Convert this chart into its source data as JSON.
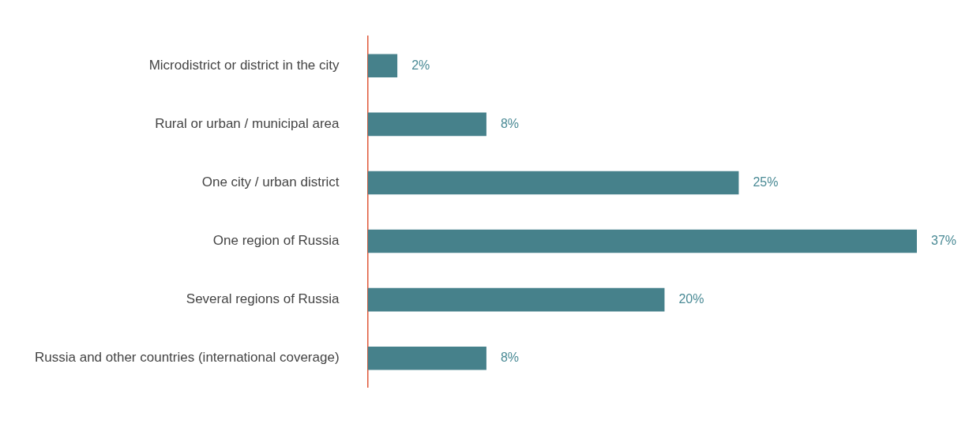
{
  "chart_data": {
    "type": "bar",
    "orientation": "horizontal",
    "categories": [
      "Microdistrict or district in the city",
      "Rural or urban / municipal area",
      "One city / urban district",
      "One region of Russia",
      "Several regions of Russia",
      "Russia and other countries (international coverage)"
    ],
    "values": [
      2,
      8,
      25,
      37,
      20,
      8
    ],
    "value_labels": [
      "2%",
      "8%",
      "25%",
      "37%",
      "20%",
      "8%"
    ],
    "color": "#46818b",
    "xlim": [
      0,
      37
    ],
    "tick_labels": "y",
    "grid": false,
    "legend": false
  }
}
